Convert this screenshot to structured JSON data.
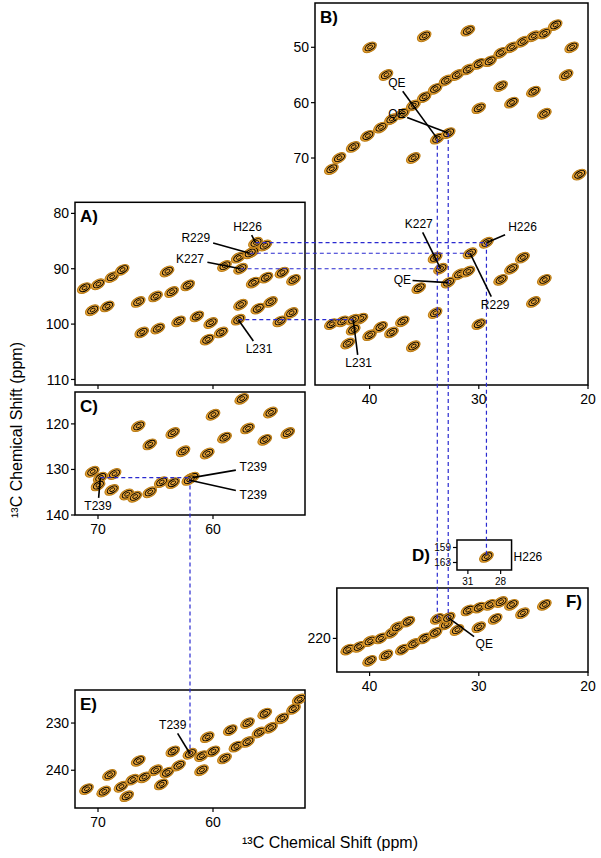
{
  "chart_data": [
    {
      "type": "scatter",
      "title": "A)",
      "marker": "contour",
      "color": "#e9a437",
      "xlim": [
        72,
        52
      ],
      "ylim": [
        78,
        111
      ],
      "xticks": [
        70,
        60
      ],
      "yticks": [
        80,
        90,
        100,
        110
      ],
      "tick_labels": "y",
      "x": [
        71.2,
        70.0,
        68.8,
        67.9,
        66.5,
        65.0,
        63.6,
        62.2,
        66.2,
        64.8,
        63.0,
        61.4,
        60.2,
        59.0,
        57.8,
        56.6,
        56.3,
        56.8,
        57.6,
        55.5,
        56.5,
        55.4,
        54.0,
        53.0,
        57.6,
        56.1,
        55.0,
        54.2,
        53.2,
        60.5,
        59.3,
        57.8,
        70.5,
        69.2,
        64.0
      ],
      "y": [
        93.5,
        92.8,
        91.5,
        90.2,
        96.0,
        95.0,
        94.2,
        93.0,
        101.5,
        100.8,
        99.5,
        98.6,
        99.8,
        89.5,
        88.0,
        87.0,
        85.3,
        87.2,
        90.0,
        85.8,
        92.5,
        91.6,
        90.7,
        92.0,
        96.5,
        97.2,
        96.0,
        99.5,
        98.0,
        102.8,
        101.5,
        99.2,
        97.5,
        96.8,
        90.5
      ],
      "annotations": [
        {
          "text": "H226",
          "x": 56.3,
          "y": 85.3,
          "label_x": 57.0,
          "label_y": 82.5
        },
        {
          "text": "R229",
          "x": 56.8,
          "y": 87.2,
          "label_x": 61.5,
          "label_y": 84.5
        },
        {
          "text": "K227",
          "x": 57.6,
          "y": 90.0,
          "label_x": 62.0,
          "label_y": 88.2
        },
        {
          "text": "L231",
          "x": 57.8,
          "y": 99.2,
          "label_x": 56.0,
          "label_y": 104.5
        }
      ]
    },
    {
      "type": "scatter",
      "title": "B)",
      "marker": "contour",
      "color": "#e9a437",
      "xlim": [
        45,
        20
      ],
      "ylim": [
        42,
        111
      ],
      "xticks": [
        40,
        30,
        20
      ],
      "yticks": [
        50,
        60,
        70
      ],
      "tick_labels": true,
      "x": [
        43.5,
        42.8,
        41.5,
        40.2,
        39.0,
        38.0,
        37.0,
        36.0,
        35.0,
        34.0,
        33.0,
        32.0,
        31.0,
        30.0,
        29.0,
        28.0,
        27.0,
        26.0,
        25.0,
        24.0,
        23.0,
        22.0,
        21.5,
        25.0,
        27.0,
        30.0,
        33.8,
        32.8,
        36.0,
        38.5,
        40.0,
        35.0,
        31.0,
        28.0,
        24.0,
        20.8,
        34.0,
        33.5,
        32.8,
        31.8,
        31.0,
        30.8,
        29.3,
        28.0,
        26.0,
        27.0,
        24.0,
        35.5,
        43.5,
        42.5,
        41.5,
        40.8,
        40.0,
        39.0,
        38.0,
        37.0,
        42.0,
        36.0,
        34.0,
        30.0,
        25.0,
        41.5
      ],
      "y": [
        72.0,
        70.0,
        68.0,
        66.0,
        64.5,
        63.0,
        62.0,
        60.5,
        59.0,
        57.5,
        56.0,
        55.0,
        54.0,
        53.0,
        52.5,
        51.0,
        50.0,
        49.0,
        48.0,
        47.5,
        46.0,
        55.0,
        50.0,
        58.0,
        60.0,
        61.0,
        66.5,
        65.5,
        70.0,
        55.0,
        50.0,
        48.0,
        47.0,
        57.0,
        62.0,
        73.0,
        88.0,
        90.0,
        92.5,
        91.0,
        90.5,
        87.2,
        85.3,
        92.0,
        88.0,
        90.0,
        92.0,
        93.5,
        100.0,
        99.5,
        101.0,
        99.0,
        102.0,
        100.5,
        101.5,
        99.5,
        103.5,
        104.0,
        98.0,
        100.0,
        96.0,
        99.2
      ],
      "annotations": [
        {
          "text": "QE",
          "x": 33.8,
          "y": 66.5,
          "label_x": 37.5,
          "label_y": 56.5
        },
        {
          "text": "QE",
          "x": 32.8,
          "y": 65.5,
          "label_x": 37.5,
          "label_y": 62.0
        },
        {
          "text": "H226",
          "x": 29.3,
          "y": 85.3,
          "label_x": 26.0,
          "label_y": 82.5
        },
        {
          "text": "K227",
          "x": 33.5,
          "y": 90.0,
          "label_x": 35.5,
          "label_y": 82.0
        },
        {
          "text": "QE",
          "x": 32.8,
          "y": 92.5,
          "label_x": 37.0,
          "label_y": 92.0
        },
        {
          "text": "R229",
          "x": 30.8,
          "y": 87.2,
          "label_x": 28.5,
          "label_y": 96.5
        },
        {
          "text": "L231",
          "x": 41.5,
          "y": 99.2,
          "label_x": 41.0,
          "label_y": 107.0
        }
      ]
    },
    {
      "type": "scatter",
      "title": "C)",
      "marker": "contour",
      "color": "#e9a437",
      "xlim": [
        72,
        52
      ],
      "ylim": [
        113,
        140
      ],
      "xticks": [
        70,
        60
      ],
      "yticks": [
        120,
        130,
        140
      ],
      "tick_labels": true,
      "x": [
        70.5,
        69.8,
        68.6,
        70.0,
        68.8,
        67.5,
        66.8,
        65.5,
        64.5,
        63.5,
        62.0,
        61.8,
        62.1,
        62.6,
        60.5,
        59.0,
        57.0,
        55.5,
        53.5,
        65.5,
        60.0,
        57.5,
        55.0,
        63.5,
        66.5
      ],
      "y": [
        130.5,
        131.8,
        131.0,
        133.5,
        134.5,
        135.5,
        136.0,
        135.0,
        132.8,
        133.0,
        132.0,
        131.8,
        132.3,
        126.0,
        126.5,
        123.0,
        121.0,
        123.5,
        122.0,
        124.5,
        118.0,
        114.5,
        117.5,
        122.0,
        120.5
      ],
      "annotations": [
        {
          "text": "T239",
          "x": 69.8,
          "y": 131.8,
          "label_x": 70.0,
          "label_y": 138.0
        },
        {
          "text": "T239",
          "x": 61.8,
          "y": 131.8,
          "label_x": 56.5,
          "label_y": 129.5
        },
        {
          "text": "T239",
          "x": 62.1,
          "y": 132.3,
          "label_x": 56.5,
          "label_y": 135.5
        }
      ]
    },
    {
      "type": "scatter",
      "title": "D)",
      "marker": "contour",
      "color": "#e9a437",
      "xlim": [
        32,
        27
      ],
      "ylim": [
        157,
        165
      ],
      "xticks": [
        31,
        28
      ],
      "yticks": [
        159,
        163
      ],
      "tick_labels": true,
      "x": [
        29.3
      ],
      "y": [
        161.5
      ],
      "annotations": [
        {
          "text": "H226",
          "label_x": 25.5,
          "label_y": 161.5
        }
      ]
    },
    {
      "type": "scatter",
      "title": "E)",
      "marker": "contour",
      "color": "#e9a437",
      "xlim": [
        72,
        52
      ],
      "ylim": [
        223,
        248
      ],
      "xticks": [
        70,
        60
      ],
      "yticks": [
        230,
        240
      ],
      "tick_labels": true,
      "x": [
        71.0,
        69.5,
        68.0,
        67.0,
        66.0,
        65.0,
        64.0,
        63.0,
        62.0,
        61.0,
        60.0,
        59.0,
        58.0,
        57.0,
        56.0,
        55.0,
        54.0,
        53.0,
        52.5,
        63.5,
        60.5,
        58.5,
        57.0,
        64.5,
        66.5,
        55.5,
        61.0,
        69.0,
        67.5
      ],
      "y": [
        244.0,
        244.5,
        243.5,
        242.0,
        241.5,
        240.0,
        240.5,
        239.0,
        236.5,
        237.0,
        236.0,
        237.5,
        235.0,
        234.0,
        232.0,
        231.0,
        229.0,
        227.0,
        225.0,
        236.0,
        233.0,
        231.5,
        230.0,
        243.0,
        238.0,
        228.0,
        240.0,
        241.0,
        245.5
      ],
      "annotations": [
        {
          "text": "T239",
          "x": 62.0,
          "y": 236.5,
          "label_x": 63.5,
          "label_y": 230.5
        }
      ]
    },
    {
      "type": "scatter",
      "title": "F)",
      "marker": "contour",
      "color": "#e9a437",
      "xlim": [
        43,
        20
      ],
      "ylim": [
        211,
        226
      ],
      "xticks": [
        40,
        30,
        20
      ],
      "yticks": [
        220
      ],
      "tick_labels": true,
      "x": [
        42.0,
        41.0,
        40.0,
        39.0,
        38.0,
        37.5,
        36.5,
        33.8,
        33.0,
        32.8,
        31.0,
        30.0,
        29.0,
        28.0,
        27.0,
        40.0,
        38.5,
        37.0,
        36.0,
        35.0,
        34.0,
        32.0,
        30.0,
        28.5,
        26.0,
        24.0
      ],
      "y": [
        222.0,
        221.5,
        220.5,
        220.0,
        219.0,
        218.0,
        217.0,
        216.5,
        217.5,
        216.3,
        215.0,
        214.5,
        214.0,
        213.5,
        214.0,
        224.0,
        223.0,
        222.0,
        221.0,
        220.0,
        219.0,
        218.5,
        218.0,
        216.5,
        215.5,
        214.0
      ],
      "annotations": [
        {
          "text": "QE",
          "x": 32.8,
          "y": 216.3,
          "label_x": 29.5,
          "label_y": 221.0
        }
      ]
    }
  ],
  "xlabel": "¹³C Chemical Shift (ppm)",
  "ylabel": "¹³C Chemical Shift (ppm)",
  "links": [
    {
      "from": {
        "panel": 0,
        "x": 56.3,
        "y": 85.3
      },
      "to": {
        "panel": 1,
        "x": 29.3,
        "y": 85.3
      }
    },
    {
      "from": {
        "panel": 0,
        "x": 56.8,
        "y": 87.2
      },
      "to": {
        "panel": 1,
        "x": 30.8,
        "y": 87.2
      }
    },
    {
      "from": {
        "panel": 0,
        "x": 57.6,
        "y": 90.0
      },
      "to": {
        "panel": 1,
        "x": 33.5,
        "y": 90.0
      }
    },
    {
      "from": {
        "panel": 0,
        "x": 57.8,
        "y": 99.2
      },
      "to": {
        "panel": 1,
        "x": 41.5,
        "y": 99.2
      }
    },
    {
      "from": {
        "panel": 1,
        "x": 33.8,
        "y": 66.5
      },
      "to": {
        "panel": 5,
        "x": 33.8,
        "y": 216.5
      }
    },
    {
      "from": {
        "panel": 1,
        "x": 32.8,
        "y": 65.5
      },
      "to": {
        "panel": 5,
        "x": 32.8,
        "y": 216.3
      }
    },
    {
      "from": {
        "panel": 1,
        "x": 29.3,
        "y": 85.3
      },
      "to": {
        "panel": 3,
        "x": 29.3,
        "y": 161.5
      }
    },
    {
      "from": {
        "panel": 2,
        "x": 69.8,
        "y": 131.8
      },
      "to": {
        "panel": 2,
        "x": 62.0,
        "y": 131.8
      }
    },
    {
      "from": {
        "panel": 2,
        "x": 62.0,
        "y": 132.0
      },
      "to": {
        "panel": 4,
        "x": 62.0,
        "y": 236.5
      }
    }
  ]
}
